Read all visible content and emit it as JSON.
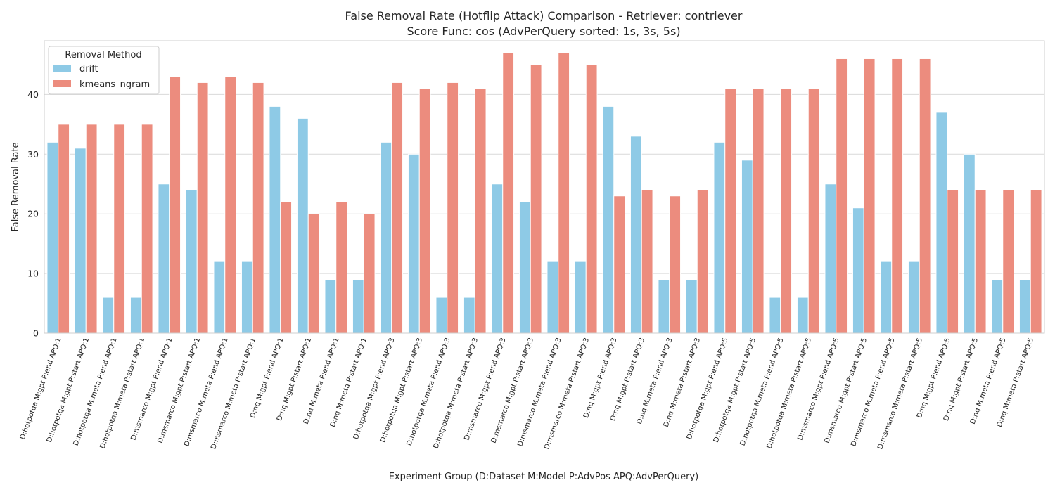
{
  "chart_data": {
    "type": "bar",
    "title_line1": "False Removal Rate (Hotflip Attack) Comparison - Retriever: contriever",
    "title_line2": "Score Func: cos (AdvPerQuery sorted: 1s, 3s, 5s)",
    "xlabel": "Experiment Group (D:Dataset M:Model P:AdvPos APQ:AdvPerQuery)",
    "ylabel": "False Removal Rate",
    "ylim": [
      0,
      49
    ],
    "yticks": [
      0,
      10,
      20,
      30,
      40
    ],
    "grid": true,
    "legend": {
      "title": "Removal Method",
      "position": "top-left"
    },
    "categories": [
      "D:hotpotqa M:gpt P:end APQ:1",
      "D:hotpotqa M:gpt P:start APQ:1",
      "D:hotpotqa M:meta P:end APQ:1",
      "D:hotpotqa M:meta P:start APQ:1",
      "D:msmarco M:gpt P:end APQ:1",
      "D:msmarco M:gpt P:start APQ:1",
      "D:msmarco M:meta P:end APQ:1",
      "D:msmarco M:meta P:start APQ:1",
      "D:nq M:gpt P:end APQ:1",
      "D:nq M:gpt P:start APQ:1",
      "D:nq M:meta P:end APQ:1",
      "D:nq M:meta P:start APQ:1",
      "D:hotpotqa M:gpt P:end APQ:3",
      "D:hotpotqa M:gpt P:start APQ:3",
      "D:hotpotqa M:meta P:end APQ:3",
      "D:hotpotqa M:meta P:start APQ:3",
      "D:msmarco M:gpt P:end APQ:3",
      "D:msmarco M:gpt P:start APQ:3",
      "D:msmarco M:meta P:end APQ:3",
      "D:msmarco M:meta P:start APQ:3",
      "D:nq M:gpt P:end APQ:3",
      "D:nq M:gpt P:start APQ:3",
      "D:nq M:meta P:end APQ:3",
      "D:nq M:meta P:start APQ:3",
      "D:hotpotqa M:gpt P:end APQ:5",
      "D:hotpotqa M:gpt P:start APQ:5",
      "D:hotpotqa M:meta P:end APQ:5",
      "D:hotpotqa M:meta P:start APQ:5",
      "D:msmarco M:gpt P:end APQ:5",
      "D:msmarco M:gpt P:start APQ:5",
      "D:msmarco M:meta P:end APQ:5",
      "D:msmarco M:meta P:start APQ:5",
      "D:nq M:gpt P:end APQ:5",
      "D:nq M:gpt P:start APQ:5",
      "D:nq M:meta P:end APQ:5",
      "D:nq M:meta P:start APQ:5"
    ],
    "series": [
      {
        "name": "drift",
        "color": "#8ecae6",
        "values": [
          32,
          31,
          6,
          6,
          25,
          24,
          12,
          12,
          38,
          36,
          9,
          9,
          32,
          30,
          6,
          6,
          25,
          22,
          12,
          12,
          38,
          33,
          9,
          9,
          32,
          29,
          6,
          6,
          25,
          21,
          12,
          12,
          37,
          30,
          9,
          9
        ]
      },
      {
        "name": "kmeans_ngram",
        "color": "#ec8c7e",
        "values": [
          35,
          35,
          35,
          35,
          43,
          42,
          43,
          42,
          22,
          20,
          22,
          20,
          42,
          41,
          42,
          41,
          47,
          45,
          47,
          45,
          23,
          24,
          23,
          24,
          41,
          41,
          41,
          41,
          46,
          46,
          46,
          46,
          24,
          24,
          24,
          24
        ]
      }
    ]
  }
}
